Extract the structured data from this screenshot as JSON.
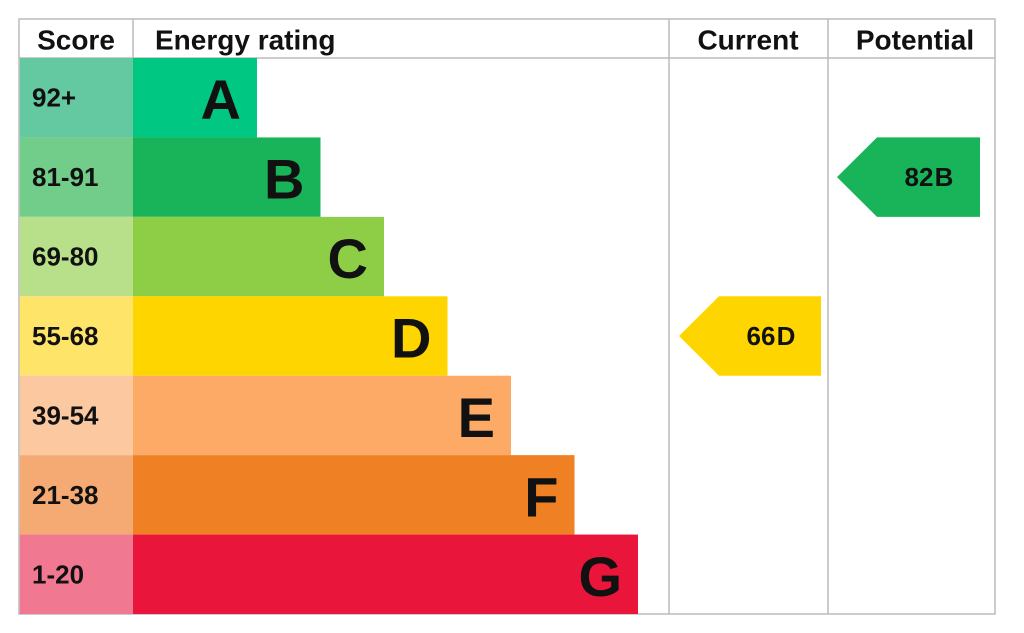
{
  "header": {
    "score": "Score",
    "rating": "Energy rating",
    "current": "Current",
    "potential": "Potential"
  },
  "bands": [
    {
      "score": "92+",
      "letter": "A",
      "color": "#00c781",
      "score_color": "#64c8a0"
    },
    {
      "score": "81-91",
      "letter": "B",
      "color": "#19b459",
      "score_color": "#72cc8a"
    },
    {
      "score": "69-80",
      "letter": "C",
      "color": "#8dce46",
      "score_color": "#b8e08a"
    },
    {
      "score": "55-68",
      "letter": "D",
      "color": "#ffd500",
      "score_color": "#ffe46a"
    },
    {
      "score": "39-54",
      "letter": "E",
      "color": "#fcaa65",
      "score_color": "#fcc8a0"
    },
    {
      "score": "21-38",
      "letter": "F",
      "color": "#ef8023",
      "score_color": "#f4aa72"
    },
    {
      "score": "1-20",
      "letter": "G",
      "color": "#e9153b",
      "score_color": "#f07890"
    }
  ],
  "current": {
    "value": 66,
    "letter": "D"
  },
  "potential": {
    "value": 82,
    "letter": "B"
  }
}
